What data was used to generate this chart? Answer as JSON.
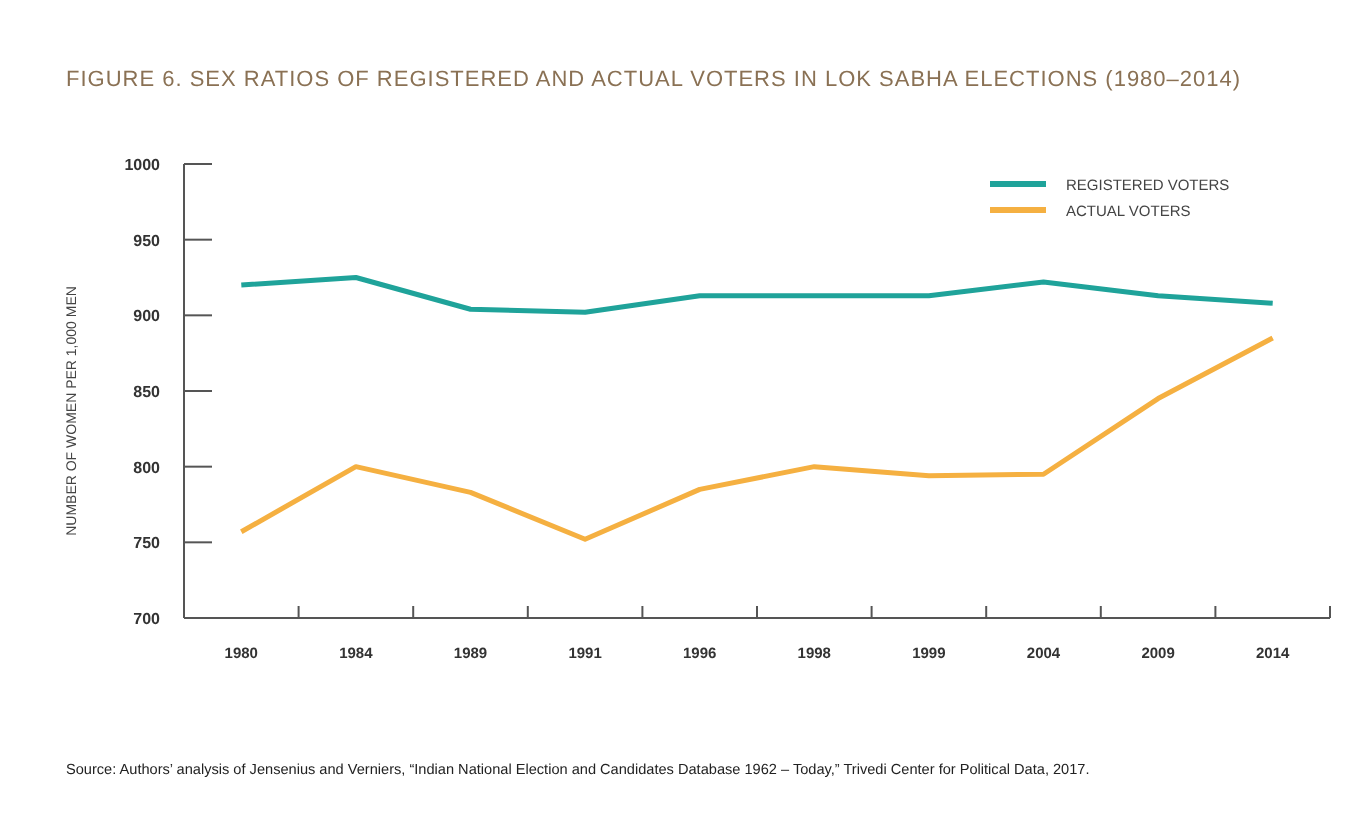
{
  "chart_data": {
    "type": "line",
    "title": "FIGURE 6. SEX RATIOS OF REGISTERED AND ACTUAL VOTERS IN LOK SABHA ELECTIONS (1980–2014)",
    "ylabel": "NUMBER OF WOMEN PER 1,000 MEN",
    "categories": [
      "1980",
      "1984",
      "1989",
      "1991",
      "1996",
      "1998",
      "1999",
      "2004",
      "2009",
      "2014"
    ],
    "series": [
      {
        "name": "REGISTERED VOTERS",
        "color": "#1fa39a",
        "values": [
          920,
          925,
          904,
          902,
          913,
          913,
          913,
          922,
          913,
          908
        ]
      },
      {
        "name": "ACTUAL VOTERS",
        "color": "#f5b041",
        "values": [
          757,
          800,
          783,
          752,
          785,
          800,
          794,
          795,
          845,
          885
        ]
      }
    ],
    "ylim": [
      700,
      1000
    ],
    "yticks": [
      700,
      750,
      800,
      850,
      900,
      950,
      1000
    ],
    "grid": false,
    "legend": "top right",
    "marker": "none",
    "line_style": "solid",
    "annotations": [
      "Source: Authors’ analysis of Jensenius and Verniers, “Indian National Election and Candidates Database 1962 – Today,” Trivedi Center for Political Data, 2017."
    ]
  }
}
